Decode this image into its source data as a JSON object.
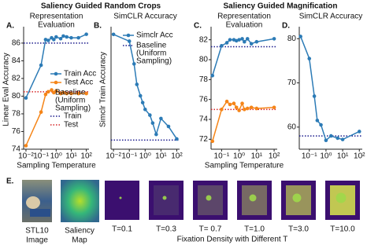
{
  "headers": [
    "Saliency Guided Random Crops",
    "Saliency Guided Magnification"
  ],
  "chart_data": [
    {
      "type": "line",
      "panel": "A.",
      "title": [
        "Representation",
        "Evaluation"
      ],
      "y_label": "Linear Eval Accuracy",
      "x_label": "Sampling Temperature",
      "xscale": "log",
      "xlim": [
        0.007,
        150
      ],
      "xticks": [
        {
          "value": 0.01,
          "label": "10⁻²"
        },
        {
          "value": 0.1,
          "label": "10⁻¹"
        },
        {
          "value": 1,
          "label": "10⁰"
        },
        {
          "value": 10,
          "label": "10¹"
        },
        {
          "value": 100,
          "label": "10²"
        }
      ],
      "ylim": [
        74,
        87.5
      ],
      "yticks": [
        74,
        76,
        78,
        80,
        82,
        84,
        86
      ],
      "x": [
        0.01,
        0.1,
        0.2,
        0.3,
        0.5,
        0.7,
        1,
        2,
        3,
        5,
        10,
        30,
        100
      ],
      "series": [
        {
          "name": "Train Acc",
          "color": "#2c7bb6",
          "values": [
            79.8,
            83.5,
            86.4,
            86.3,
            86.6,
            86.4,
            86.7,
            86.5,
            86.8,
            86.7,
            86.6,
            86.6,
            87.0
          ]
        },
        {
          "name": "Test Acc",
          "color": "#f58518",
          "values": [
            74.4,
            78.2,
            80.2,
            80.5,
            80.7,
            80.4,
            80.6,
            80.3,
            80.4,
            80.3,
            80.3,
            80.3,
            80.3
          ]
        }
      ],
      "legend_title": [
        "Baseline",
        "(Uniform",
        "Sampling)"
      ],
      "hlines": [
        {
          "name": "Train",
          "value": 86.0,
          "color": "#1a1a8c"
        },
        {
          "name": "Test",
          "value": 80.5,
          "color": "#d62728"
        }
      ]
    },
    {
      "type": "line",
      "panel": "B.",
      "title": [
        "SimCLR Accuracy"
      ],
      "y_label": "Simclr Train Accuracy",
      "xscale": "log",
      "xlim": [
        0.007,
        150
      ],
      "xticks": [
        {
          "value": 0.01,
          "label": "10⁻²"
        },
        {
          "value": 0.1,
          "label": "10⁻¹"
        },
        {
          "value": 1,
          "label": "10⁰"
        },
        {
          "value": 10,
          "label": "10¹"
        },
        {
          "value": 100,
          "label": "10²"
        }
      ],
      "ylim": [
        -5,
        100
      ],
      "x": [
        0.01,
        0.1,
        0.2,
        0.3,
        0.5,
        0.7,
        1,
        2,
        3,
        5,
        10,
        30,
        100
      ],
      "series": [
        {
          "name": "Simclr Acc",
          "color": "#2c7bb6",
          "values": [
            96,
            90,
            70,
            52,
            42,
            36,
            30,
            25,
            18,
            8,
            22,
            15,
            4
          ]
        }
      ],
      "legend_title": [
        "Baseline",
        "(Uniform",
        "Sampling)"
      ],
      "hlines": [
        {
          "value": 3,
          "color": "#1a1a8c"
        }
      ]
    },
    {
      "type": "line",
      "panel": "C.",
      "title": [
        "Representation",
        "Evaluation"
      ],
      "x_label": "Sampling Temperature",
      "xscale": "log",
      "xlim": [
        0.025,
        150
      ],
      "xticks": [
        {
          "value": 0.1,
          "label": "10⁻¹"
        },
        {
          "value": 1,
          "label": "10⁰"
        },
        {
          "value": 10,
          "label": "10¹"
        },
        {
          "value": 100,
          "label": "10²"
        }
      ],
      "ylim": [
        71,
        83
      ],
      "yticks": [
        72,
        74,
        76,
        78,
        80,
        82
      ],
      "x": [
        0.03,
        0.1,
        0.2,
        0.3,
        0.5,
        0.7,
        1,
        1.5,
        2,
        3,
        5,
        10,
        100
      ],
      "series": [
        {
          "color": "#2c7bb6",
          "values": [
            78.4,
            81.4,
            81.7,
            82.0,
            82.0,
            81.9,
            82.0,
            82.1,
            81.8,
            82.1,
            81.6,
            81.8,
            82.1
          ]
        },
        {
          "color": "#f58518",
          "values": [
            71.8,
            75.0,
            75.8,
            75.5,
            75.6,
            75.2,
            74.9,
            75.6,
            75.0,
            75.1,
            75.2,
            75.1,
            75.2
          ]
        }
      ],
      "hlines": [
        {
          "value": 81.3,
          "color": "#1a1a8c"
        },
        {
          "value": 75.0,
          "color": "#d62728"
        }
      ]
    },
    {
      "type": "line",
      "panel": "D.",
      "title": [
        "SimCLR Accuracy"
      ],
      "xscale": "log",
      "xlim": [
        0.025,
        150
      ],
      "xticks": [
        {
          "value": 0.1,
          "label": "10⁻¹"
        },
        {
          "value": 1,
          "label": "10⁰"
        },
        {
          "value": 10,
          "label": "10¹"
        },
        {
          "value": 100,
          "label": "10²"
        }
      ],
      "ylim": [
        55,
        82
      ],
      "yticks": [
        60,
        70,
        80
      ],
      "x": [
        0.03,
        0.1,
        0.2,
        0.3,
        0.5,
        1,
        2,
        5,
        10,
        100
      ],
      "series": [
        {
          "color": "#2c7bb6",
          "values": [
            80.5,
            75.5,
            67,
            61.5,
            60.5,
            57,
            58,
            57.5,
            57.2,
            59
          ]
        }
      ],
      "hlines": [
        {
          "value": 58,
          "color": "#1a1a8c"
        }
      ]
    }
  ],
  "panel_e": {
    "label": "E.",
    "image_caption": [
      "STL10",
      "Image"
    ],
    "saliency_caption": [
      "Saliency",
      "Map"
    ],
    "temperatures": [
      "T=0.1",
      "T=0.3",
      "T= 0.7",
      "T=1.0",
      "T=3.0",
      "T=10.0"
    ],
    "caption": "Fixation Density with Different T"
  }
}
